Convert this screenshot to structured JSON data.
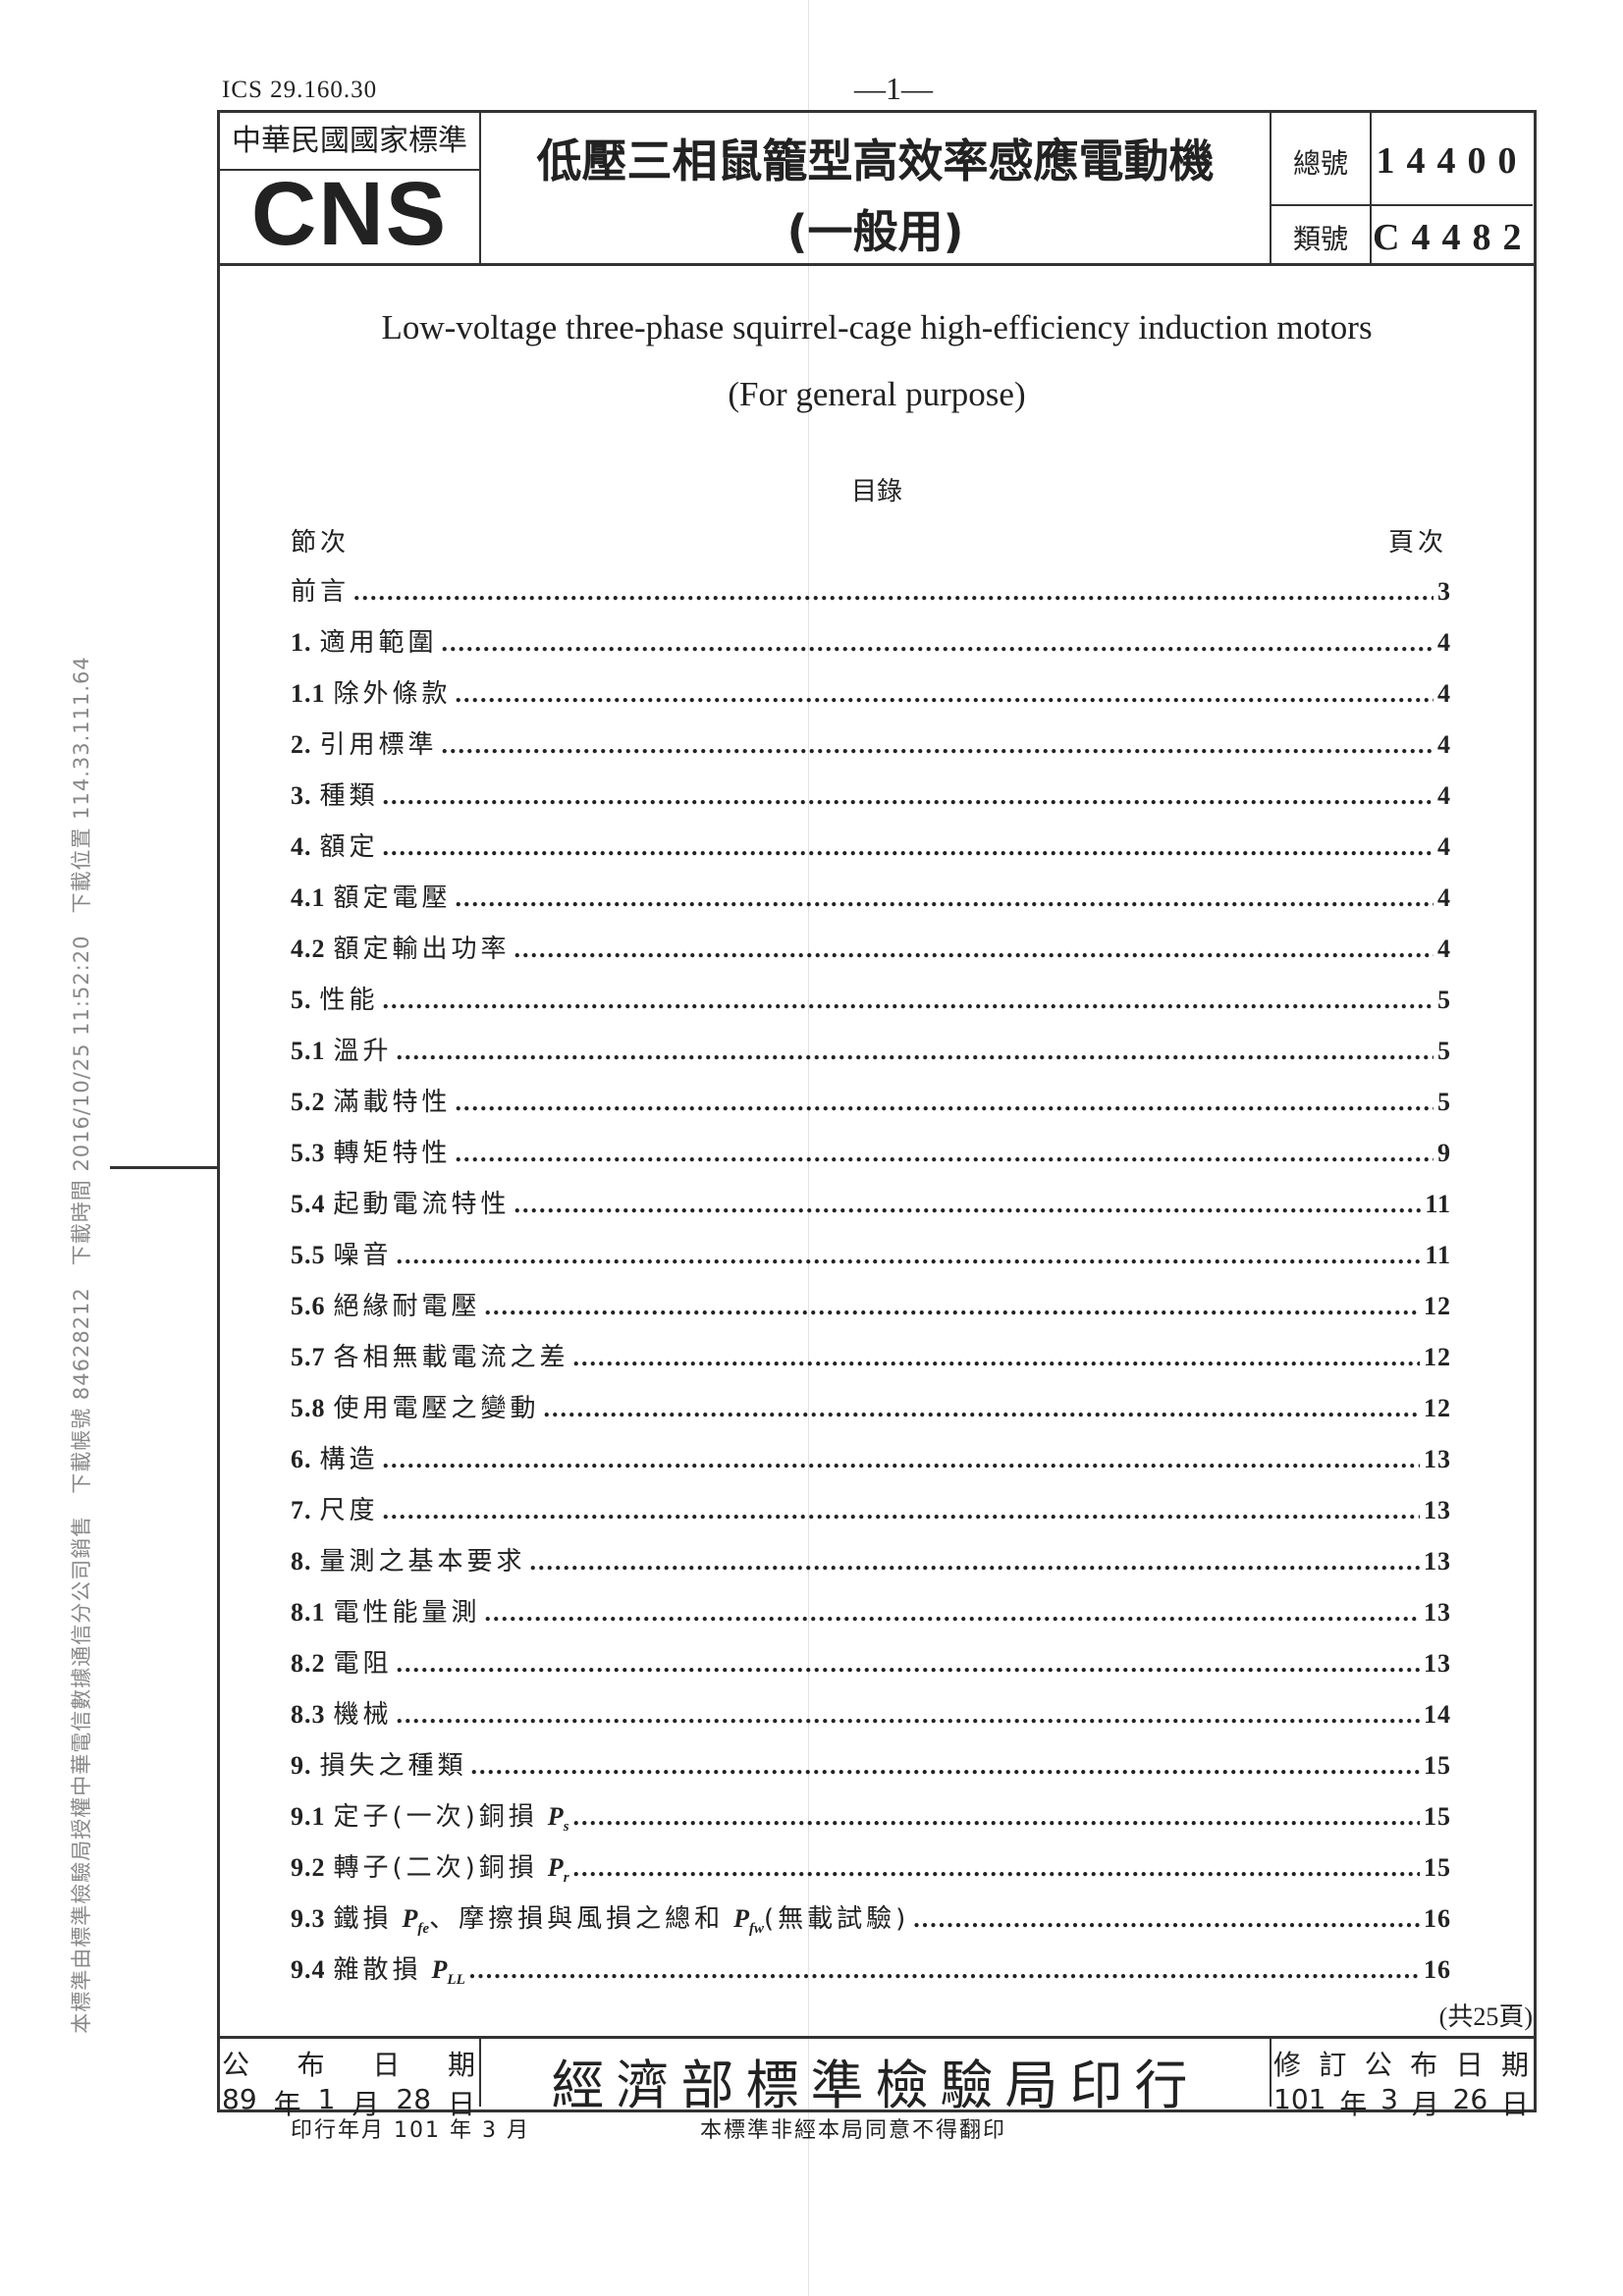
{
  "header": {
    "ics": "ICS 29.160.30",
    "page_number": "—1—",
    "organization": "中華民國國家標準",
    "logo": "CNS",
    "title_line1": "低壓三相鼠籠型高效率感應電動機",
    "title_line2": "(一般用)",
    "total_no_label": "總號",
    "total_no": "14400",
    "class_no_label": "類號",
    "class_no": "C4482"
  },
  "english_title": {
    "line1": "Low-voltage three-phase squirrel-cage high-efficiency induction motors",
    "line2": "(For general purpose)"
  },
  "toc": {
    "title": "目錄",
    "col_section": "節次",
    "col_page": "頁次",
    "items": [
      {
        "no": "",
        "label": "前言",
        "page": "3"
      },
      {
        "no": "1.",
        "label": "適用範圍",
        "page": "4"
      },
      {
        "no": "1.1",
        "label": "除外條款",
        "page": "4"
      },
      {
        "no": "2.",
        "label": "引用標準",
        "page": "4"
      },
      {
        "no": "3.",
        "label": "種類",
        "page": "4"
      },
      {
        "no": "4.",
        "label": "額定",
        "page": "4"
      },
      {
        "no": "4.1",
        "label": "額定電壓",
        "page": "4"
      },
      {
        "no": "4.2",
        "label": "額定輸出功率",
        "page": "4"
      },
      {
        "no": "5.",
        "label": "性能",
        "page": "5"
      },
      {
        "no": "5.1",
        "label": "溫升",
        "page": "5"
      },
      {
        "no": "5.2",
        "label": "滿載特性",
        "page": "5"
      },
      {
        "no": "5.3",
        "label": "轉矩特性",
        "page": "9"
      },
      {
        "no": "5.4",
        "label": "起動電流特性",
        "page": "11"
      },
      {
        "no": "5.5",
        "label": "噪音",
        "page": "11"
      },
      {
        "no": "5.6",
        "label": "絕緣耐電壓",
        "page": "12"
      },
      {
        "no": "5.7",
        "label": "各相無載電流之差",
        "page": "12"
      },
      {
        "no": "5.8",
        "label": "使用電壓之變動",
        "page": "12"
      },
      {
        "no": "6.",
        "label": "構造",
        "page": "13"
      },
      {
        "no": "7.",
        "label": "尺度",
        "page": "13"
      },
      {
        "no": "8.",
        "label": "量測之基本要求",
        "page": "13"
      },
      {
        "no": "8.1",
        "label": "電性能量測",
        "page": "13"
      },
      {
        "no": "8.2",
        "label": "電阻",
        "page": "13"
      },
      {
        "no": "8.3",
        "label": "機械",
        "page": "14"
      },
      {
        "no": "9.",
        "label": "損失之種類",
        "page": "15"
      }
    ],
    "item_9_1": {
      "no": "9.1",
      "label": "定子(一次)銅損",
      "sym": "P",
      "sub": "s",
      "page": "15"
    },
    "item_9_2": {
      "no": "9.2",
      "label": "轉子(二次)銅損",
      "sym": "P",
      "sub": "r",
      "page": "15"
    },
    "item_9_3": {
      "no": "9.3",
      "label_a": "鐵損",
      "sym_a": "P",
      "sub_a": "fe",
      "label_b": "、摩擦損與風損之總和",
      "sym_b": "P",
      "sub_b": "fw",
      "label_c": "(無載試驗)",
      "page": "16"
    },
    "item_9_4": {
      "no": "9.4",
      "label": "雜散損",
      "sym": "P",
      "sub": "LL",
      "page": "16"
    },
    "total_pages": "(共25頁)"
  },
  "footer": {
    "publish_label": [
      "公",
      "布",
      "日",
      "期"
    ],
    "publish_date": [
      "89",
      "年",
      "1",
      "月",
      "28",
      "日"
    ],
    "publisher": "經濟部標準檢驗局印行",
    "revision_label": [
      "修",
      "訂",
      "公",
      "布",
      "日",
      "期"
    ],
    "revision_date": [
      "101",
      "年",
      "3",
      "月",
      "26",
      "日"
    ],
    "print_date": "印行年月 101 年 3 月",
    "copyright": "本標準非經本局同意不得翻印"
  },
  "watermark": "本標準由標準檢驗局授權中華電信數據通信分公司銷售　下載帳號 84628212　下載時間 2016/10/25 11:52:20　下載位置 114.33.111.64"
}
